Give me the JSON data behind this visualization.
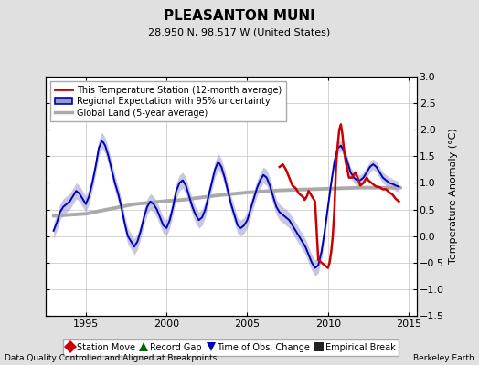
{
  "title": "PLEASANTON MUNI",
  "subtitle": "28.950 N, 98.517 W (United States)",
  "ylabel": "Temperature Anomaly (°C)",
  "footer_left": "Data Quality Controlled and Aligned at Breakpoints",
  "footer_right": "Berkeley Earth",
  "xlim": [
    1992.5,
    2015.5
  ],
  "ylim": [
    -1.5,
    3.0
  ],
  "yticks": [
    -1.5,
    -1.0,
    -0.5,
    0.0,
    0.5,
    1.0,
    1.5,
    2.0,
    2.5,
    3.0
  ],
  "xticks": [
    1995,
    2000,
    2005,
    2010,
    2015
  ],
  "bg_color": "#e0e0e0",
  "plot_bg_color": "#ffffff",
  "grid_color": "#cccccc",
  "red_line_color": "#cc0000",
  "blue_line_color": "#0000bb",
  "blue_fill_color": "#9999cc",
  "gray_line_color": "#aaaaaa",
  "legend1_labels": [
    "This Temperature Station (12-month average)",
    "Regional Expectation with 95% uncertainty",
    "Global Land (5-year average)"
  ],
  "legend2_labels": [
    "Station Move",
    "Record Gap",
    "Time of Obs. Change",
    "Empirical Break"
  ],
  "legend2_colors": [
    "#cc0000",
    "#006600",
    "#0000bb",
    "#222222"
  ],
  "legend2_markers": [
    "D",
    "^",
    "v",
    "s"
  ],
  "blue_t": [
    1993.0,
    1993.2,
    1993.4,
    1993.6,
    1993.8,
    1994.0,
    1994.2,
    1994.4,
    1994.6,
    1994.8,
    1995.0,
    1995.2,
    1995.4,
    1995.6,
    1995.8,
    1996.0,
    1996.2,
    1996.4,
    1996.6,
    1996.8,
    1997.0,
    1997.2,
    1997.4,
    1997.6,
    1997.8,
    1998.0,
    1998.2,
    1998.4,
    1998.6,
    1998.8,
    1999.0,
    1999.2,
    1999.4,
    1999.6,
    1999.8,
    2000.0,
    2000.2,
    2000.4,
    2000.6,
    2000.8,
    2001.0,
    2001.2,
    2001.4,
    2001.6,
    2001.8,
    2002.0,
    2002.2,
    2002.4,
    2002.6,
    2002.8,
    2003.0,
    2003.2,
    2003.4,
    2003.6,
    2003.8,
    2004.0,
    2004.2,
    2004.4,
    2004.6,
    2004.8,
    2005.0,
    2005.2,
    2005.4,
    2005.6,
    2005.8,
    2006.0,
    2006.2,
    2006.4,
    2006.6,
    2006.8,
    2007.0,
    2007.2,
    2007.4,
    2007.6,
    2007.8,
    2008.0,
    2008.2,
    2008.4,
    2008.6,
    2008.8,
    2009.0,
    2009.2,
    2009.4,
    2009.6,
    2009.8,
    2010.0,
    2010.2,
    2010.4,
    2010.6,
    2010.8,
    2011.0,
    2011.2,
    2011.4,
    2011.6,
    2011.8,
    2012.0,
    2012.2,
    2012.4,
    2012.6,
    2012.8,
    2013.0,
    2013.2,
    2013.4,
    2013.6,
    2013.8,
    2014.0,
    2014.2,
    2014.4
  ],
  "blue_v": [
    0.1,
    0.25,
    0.45,
    0.55,
    0.6,
    0.65,
    0.75,
    0.85,
    0.8,
    0.7,
    0.6,
    0.75,
    1.0,
    1.3,
    1.65,
    1.8,
    1.7,
    1.5,
    1.25,
    1.0,
    0.8,
    0.55,
    0.25,
    0.0,
    -0.1,
    -0.2,
    -0.1,
    0.1,
    0.35,
    0.55,
    0.65,
    0.6,
    0.5,
    0.35,
    0.2,
    0.15,
    0.3,
    0.55,
    0.85,
    1.0,
    1.05,
    0.95,
    0.75,
    0.55,
    0.4,
    0.3,
    0.35,
    0.5,
    0.75,
    1.0,
    1.25,
    1.4,
    1.3,
    1.1,
    0.85,
    0.6,
    0.4,
    0.2,
    0.15,
    0.2,
    0.3,
    0.5,
    0.7,
    0.9,
    1.05,
    1.15,
    1.1,
    0.95,
    0.75,
    0.55,
    0.45,
    0.4,
    0.35,
    0.3,
    0.2,
    0.1,
    0.0,
    -0.1,
    -0.2,
    -0.35,
    -0.5,
    -0.6,
    -0.55,
    -0.3,
    0.1,
    0.55,
    1.0,
    1.4,
    1.65,
    1.7,
    1.6,
    1.4,
    1.2,
    1.1,
    1.05,
    1.05,
    1.1,
    1.2,
    1.3,
    1.35,
    1.3,
    1.2,
    1.1,
    1.05,
    1.0,
    0.98,
    0.95,
    0.93
  ],
  "blue_err": [
    0.15,
    0.15,
    0.15,
    0.15,
    0.15,
    0.15,
    0.15,
    0.15,
    0.15,
    0.15,
    0.15,
    0.15,
    0.15,
    0.15,
    0.15,
    0.15,
    0.15,
    0.15,
    0.15,
    0.15,
    0.15,
    0.15,
    0.15,
    0.15,
    0.15,
    0.15,
    0.15,
    0.15,
    0.15,
    0.15,
    0.15,
    0.15,
    0.15,
    0.15,
    0.15,
    0.15,
    0.15,
    0.15,
    0.15,
    0.15,
    0.15,
    0.15,
    0.15,
    0.15,
    0.15,
    0.15,
    0.15,
    0.15,
    0.15,
    0.15,
    0.15,
    0.15,
    0.15,
    0.15,
    0.15,
    0.15,
    0.15,
    0.15,
    0.15,
    0.15,
    0.15,
    0.15,
    0.15,
    0.15,
    0.15,
    0.15,
    0.15,
    0.15,
    0.15,
    0.15,
    0.15,
    0.15,
    0.15,
    0.15,
    0.15,
    0.15,
    0.15,
    0.15,
    0.15,
    0.15,
    0.15,
    0.15,
    0.15,
    0.15,
    0.15,
    0.1,
    0.1,
    0.1,
    0.1,
    0.1,
    0.1,
    0.1,
    0.1,
    0.1,
    0.1,
    0.1,
    0.1,
    0.1,
    0.1,
    0.1,
    0.1,
    0.1,
    0.1,
    0.1,
    0.1,
    0.1,
    0.1,
    0.1
  ],
  "red_t": [
    2007.0,
    2007.2,
    2007.4,
    2007.6,
    2007.8,
    2008.0,
    2008.2,
    2008.4,
    2008.5,
    2008.55,
    2008.6,
    2008.7,
    2008.8,
    2009.0,
    2009.2,
    2009.4,
    2009.6,
    2009.8,
    2010.0,
    2010.1,
    2010.2,
    2010.3,
    2010.4,
    2010.5,
    2010.6,
    2010.7,
    2010.8,
    2010.9,
    2011.0,
    2011.1,
    2011.2,
    2011.3,
    2011.5,
    2011.7,
    2011.9,
    2012.0,
    2012.2,
    2012.3,
    2012.4,
    2012.5,
    2012.7,
    2012.9,
    2013.0,
    2013.2,
    2013.4,
    2013.6,
    2013.8,
    2014.0,
    2014.2,
    2014.4
  ],
  "red_v": [
    1.3,
    1.35,
    1.25,
    1.1,
    0.95,
    0.9,
    0.8,
    0.75,
    0.72,
    0.68,
    0.7,
    0.75,
    0.85,
    0.75,
    0.65,
    -0.45,
    -0.5,
    -0.55,
    -0.6,
    -0.5,
    -0.3,
    0.0,
    0.5,
    1.3,
    1.7,
    2.0,
    2.1,
    1.9,
    1.6,
    1.4,
    1.25,
    1.1,
    1.1,
    1.2,
    1.05,
    0.95,
    1.0,
    1.05,
    1.1,
    1.05,
    1.0,
    0.95,
    0.93,
    0.92,
    0.88,
    0.88,
    0.82,
    0.78,
    0.7,
    0.65
  ],
  "gray_t": [
    1993.0,
    1994.0,
    1995.0,
    1996.0,
    1997.0,
    1998.0,
    1999.0,
    2000.0,
    2001.0,
    2002.0,
    2003.0,
    2004.0,
    2005.0,
    2006.0,
    2007.0,
    2008.0,
    2009.0,
    2010.0,
    2011.0,
    2012.0,
    2013.0,
    2014.0,
    2014.5
  ],
  "gray_v": [
    0.38,
    0.4,
    0.42,
    0.48,
    0.54,
    0.6,
    0.63,
    0.66,
    0.68,
    0.72,
    0.76,
    0.79,
    0.82,
    0.84,
    0.86,
    0.87,
    0.88,
    0.89,
    0.9,
    0.91,
    0.91,
    0.91,
    0.91
  ]
}
